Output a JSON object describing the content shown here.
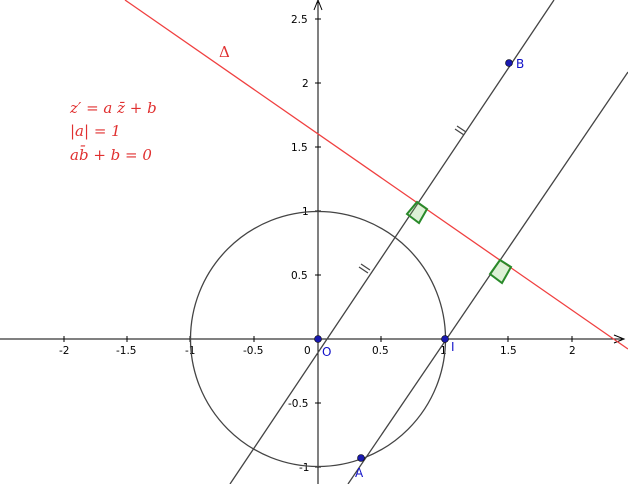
{
  "axes": {
    "x_ticks": [
      "-2",
      "-1.5",
      "-1",
      "-0.5",
      "0",
      "0.5",
      "1",
      "1.5",
      "2"
    ],
    "y_ticks": [
      "2.5",
      "2",
      "1.5",
      "1",
      "0.5",
      "-0.5",
      "-1"
    ]
  },
  "labels": {
    "delta": "Δ",
    "origin": "O",
    "point_I": "I",
    "point_A": "A",
    "point_B": "B"
  },
  "formulas": {
    "line1": "z′ = a z̄ + b",
    "line2": "|a| = 1",
    "line3": "ab̄ + b = 0"
  },
  "colors": {
    "axis": "#000000",
    "circle": "#444444",
    "lines": "#444444",
    "delta": "#f04040",
    "right_angle": "#2a8a2a",
    "point": "#1a1ab0",
    "text_red": "#e03030",
    "label_blue": "#1010c8"
  }
}
